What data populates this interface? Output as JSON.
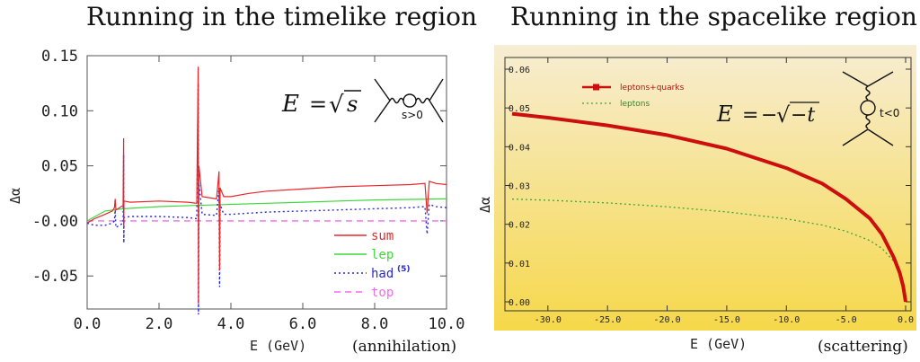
{
  "panels": {
    "left": {
      "title": "Running in the timelike region",
      "formula": {
        "lhs": "E",
        "eq": "=",
        "rhs": "s",
        "sqrt": "√"
      },
      "diagram_label": "s>0",
      "caption": "(annihilation)"
    },
    "right": {
      "title": "Running in the spacelike region",
      "formula": {
        "lhs": "E",
        "eq": "=",
        "minus": "−",
        "sqrt": "√",
        "rhs": "−t"
      },
      "diagram_label": "t<0",
      "caption": "(scattering)"
    }
  },
  "colors": {
    "sum": "#e8262a",
    "lep": "#3ed83e",
    "had": "#2a2ad6",
    "top": "#f06cf0",
    "red_band": "#cc0e0e",
    "leptons_dotted": "#3aa63a",
    "panel_bg_top": "#f7edd3",
    "panel_bg_bottom": "#f6d84a"
  },
  "chart_data": [
    {
      "type": "line",
      "xlabel": "E (GeV)",
      "ylabel": "Δα",
      "xlim": [
        0,
        10
      ],
      "ylim": [
        -0.08,
        0.15
      ],
      "x_ticks": [
        "0.0",
        "2.0",
        "4.0",
        "6.0",
        "8.0",
        "10.0"
      ],
      "y_ticks": [
        "0.15",
        "0.10",
        "0.05",
        "-0.00",
        "-0.05"
      ],
      "legend_position": "bottom-right",
      "legend": [
        {
          "name": "sum",
          "style": "solid",
          "superscript": ""
        },
        {
          "name": "lep",
          "style": "solid",
          "superscript": ""
        },
        {
          "name": "had",
          "style": "dotted",
          "superscript": "(5)"
        },
        {
          "name": "top",
          "style": "dashed",
          "superscript": ""
        }
      ],
      "series": [
        {
          "name": "sum",
          "x": [
            0.0,
            0.2,
            0.5,
            0.7,
            0.76,
            0.78,
            0.8,
            0.9,
            1.0,
            1.015,
            1.02,
            1.025,
            1.2,
            2.0,
            2.8,
            3.05,
            3.09,
            3.097,
            3.11,
            3.2,
            3.6,
            3.67,
            3.686,
            3.7,
            3.8,
            4.0,
            4.5,
            5.0,
            6.0,
            7.0,
            8.0,
            9.0,
            9.4,
            9.46,
            9.52,
            9.7,
            10.0
          ],
          "y": [
            -0.002,
            0.002,
            0.006,
            0.009,
            0.012,
            0.02,
            0.01,
            0.012,
            0.014,
            0.075,
            -0.005,
            0.018,
            0.017,
            0.018,
            0.017,
            0.016,
            0.14,
            -0.075,
            0.05,
            0.022,
            0.02,
            0.045,
            -0.045,
            0.03,
            0.022,
            0.022,
            0.025,
            0.027,
            0.029,
            0.031,
            0.032,
            0.033,
            0.034,
            0.007,
            0.036,
            0.034,
            0.033
          ]
        },
        {
          "name": "lep",
          "x": [
            0,
            0.5,
            1,
            2,
            3,
            4,
            5,
            6,
            7,
            8,
            9,
            10
          ],
          "y": [
            0.0,
            0.009,
            0.011,
            0.013,
            0.014,
            0.015,
            0.016,
            0.017,
            0.018,
            0.019,
            0.0195,
            0.02
          ]
        },
        {
          "name": "had",
          "x": [
            0.0,
            0.2,
            0.5,
            0.7,
            0.76,
            0.78,
            0.8,
            0.9,
            1.0,
            1.015,
            1.02,
            1.025,
            1.2,
            2.0,
            2.8,
            3.05,
            3.09,
            3.097,
            3.11,
            3.2,
            3.6,
            3.67,
            3.686,
            3.7,
            3.8,
            4.0,
            5.0,
            6.0,
            7.0,
            8.0,
            9.0,
            9.4,
            9.46,
            9.52,
            9.7,
            10.0
          ],
          "y": [
            -0.002,
            -0.004,
            -0.004,
            -0.002,
            0.0,
            0.01,
            -0.006,
            -0.004,
            -0.002,
            0.06,
            -0.02,
            0.003,
            0.004,
            0.004,
            0.003,
            0.002,
            0.125,
            -0.085,
            0.035,
            0.006,
            0.005,
            0.03,
            -0.06,
            0.015,
            0.006,
            0.006,
            0.008,
            0.009,
            0.01,
            0.011,
            0.012,
            0.013,
            -0.012,
            0.015,
            0.013,
            0.012
          ]
        },
        {
          "name": "top",
          "x": [
            0,
            10
          ],
          "y": [
            0.0,
            0.0
          ]
        }
      ]
    },
    {
      "type": "line",
      "xlabel": "E (GeV)",
      "ylabel": "Δα",
      "xlim": [
        -33,
        0
      ],
      "ylim": [
        0,
        0.06
      ],
      "x_ticks": [
        "-30.0",
        "-25.0",
        "-20.0",
        "-15.0",
        "-10.0",
        "-5.0",
        "0.0"
      ],
      "y_ticks": [
        "0.06",
        "0.05",
        "0.04",
        "0.03",
        "0.02",
        "0.01",
        "0.00"
      ],
      "legend_position": "top-left",
      "legend": [
        {
          "name": "leptons+quarks",
          "style": "band"
        },
        {
          "name": "leptons",
          "style": "dotted"
        }
      ],
      "series": [
        {
          "name": "leptons+quarks",
          "x": [
            -33,
            -30,
            -25,
            -20,
            -15,
            -10,
            -7,
            -5,
            -3,
            -2,
            -1,
            -0.5,
            -0.2,
            0
          ],
          "y": [
            0.0485,
            0.0475,
            0.0455,
            0.043,
            0.0395,
            0.0345,
            0.0305,
            0.0265,
            0.0215,
            0.0175,
            0.0115,
            0.0075,
            0.004,
            0.0
          ]
        },
        {
          "name": "leptons",
          "x": [
            -33,
            -30,
            -25,
            -20,
            -15,
            -10,
            -7,
            -5,
            -3,
            -2,
            -1,
            -0.5,
            -0.2,
            0
          ],
          "y": [
            0.0265,
            0.0262,
            0.0255,
            0.0245,
            0.0232,
            0.0214,
            0.0198,
            0.0182,
            0.0158,
            0.0138,
            0.0105,
            0.0078,
            0.005,
            0.0
          ]
        }
      ]
    }
  ]
}
